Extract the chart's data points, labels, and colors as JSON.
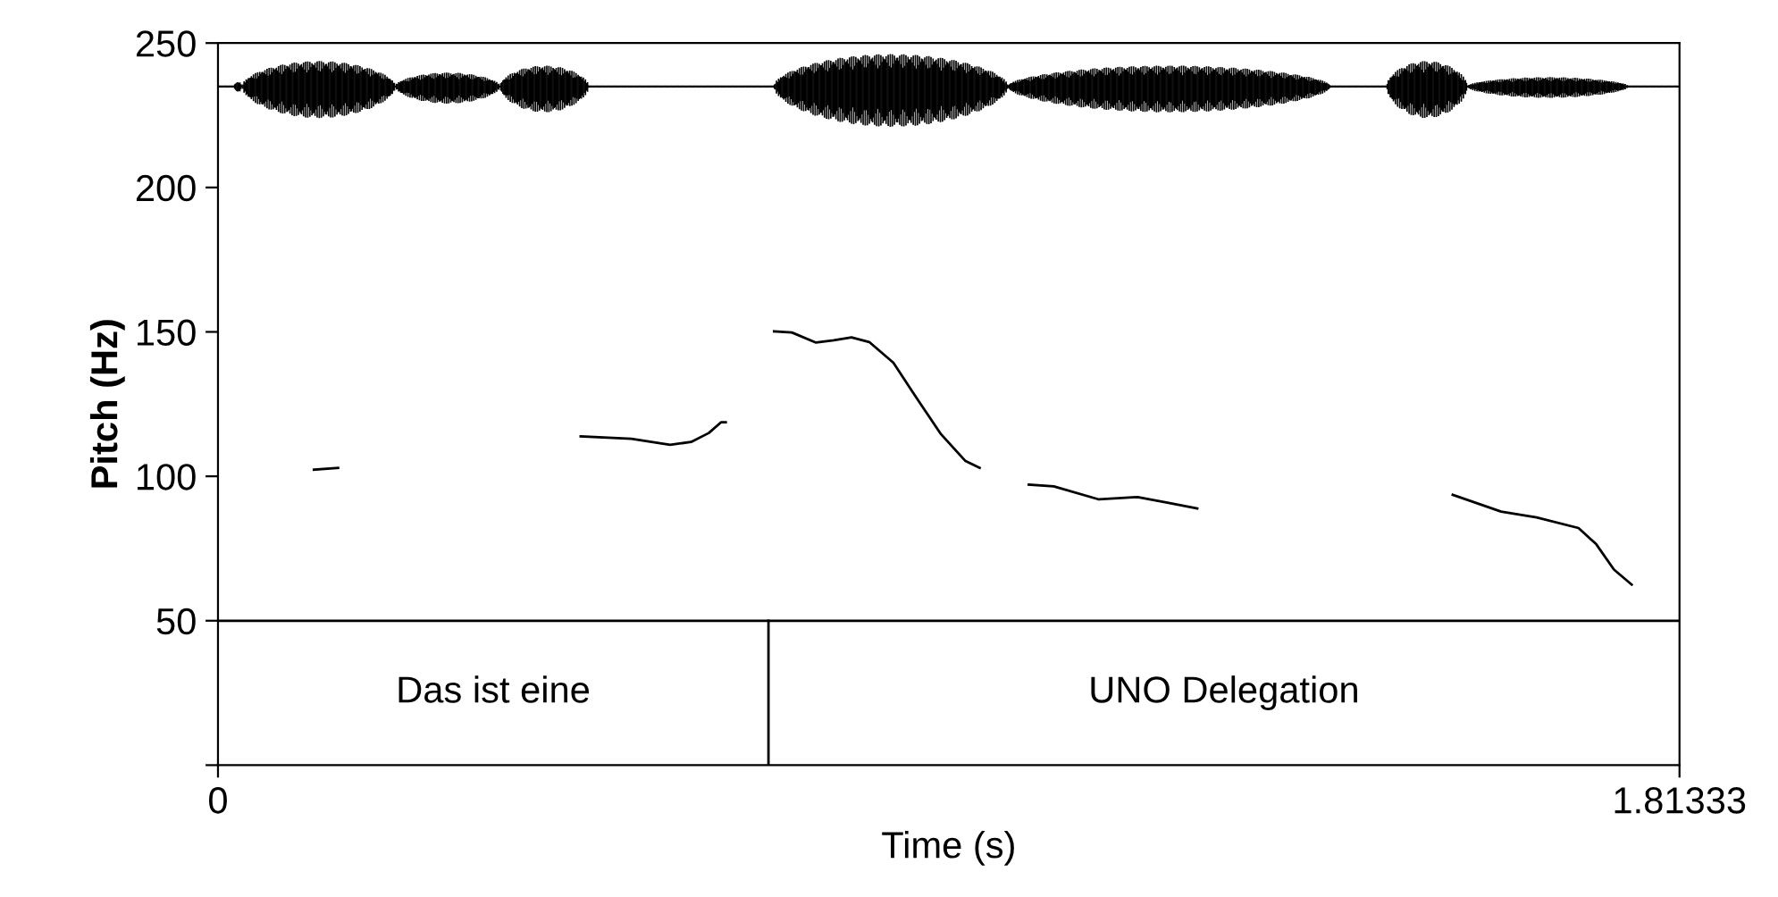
{
  "chart_data": {
    "type": "line",
    "xlabel": "Time (s)",
    "ylabel": "Pitch (Hz)",
    "xlim": [
      0,
      1.81333
    ],
    "xticks": [
      0,
      1.81333
    ],
    "ylim": [
      0,
      250
    ],
    "yticks": [
      {
        "value": 0,
        "label": null
      },
      50,
      100,
      150,
      200,
      250
    ],
    "grid": false,
    "legend": false,
    "marker": "none",
    "line_style": "solid",
    "series": [
      {
        "color": "#000000",
        "x": [
          0.119,
          0.149
        ],
        "values": [
          102.3,
          102.9
        ]
      },
      {
        "color": "#000000",
        "x": [
          0.45,
          0.513,
          0.561,
          0.587,
          0.609,
          0.624,
          0.63
        ],
        "values": [
          113.8,
          113.0,
          110.9,
          111.9,
          115.0,
          118.7,
          118.7
        ]
      },
      {
        "color": "#000000",
        "x": [
          0.69,
          0.712,
          0.742,
          0.764,
          0.786,
          0.808,
          0.838,
          0.867,
          0.897,
          0.927,
          0.945
        ],
        "values": [
          150.2,
          149.8,
          146.3,
          147.1,
          148.1,
          146.5,
          139.3,
          127.0,
          114.6,
          105.4,
          102.9
        ]
      },
      {
        "color": "#000000",
        "x": [
          1.006,
          1.037,
          1.093,
          1.141,
          1.178,
          1.215
        ],
        "values": [
          97.1,
          96.5,
          92.0,
          92.8,
          90.9,
          88.9
        ]
      },
      {
        "color": "#000000",
        "x": [
          1.532,
          1.592,
          1.636,
          1.688,
          1.71,
          1.732,
          1.754
        ],
        "values": [
          93.6,
          87.8,
          85.8,
          82.1,
          76.5,
          67.7,
          62.5
        ]
      }
    ],
    "ref_lines": [
      {
        "axis": "y",
        "value": 50,
        "color": "#000000"
      },
      {
        "axis": "x",
        "value": 0.683,
        "color": "#000000"
      }
    ],
    "annotations": [
      "Das ist eine",
      "UNO Delegation"
    ]
  }
}
